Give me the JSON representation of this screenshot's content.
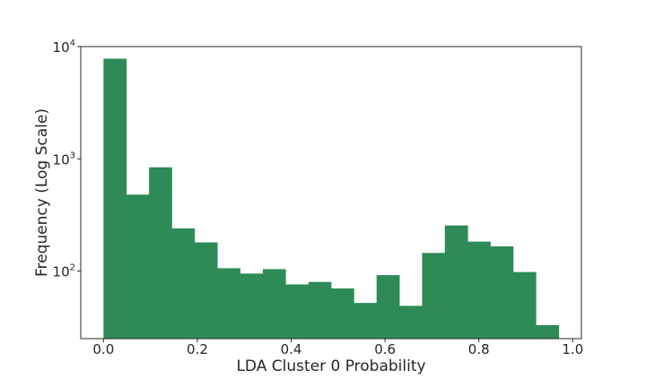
{
  "chart_data": {
    "type": "bar",
    "subtype": "histogram",
    "xlabel": "LDA Cluster 0 Probability",
    "ylabel": "Frequency (Log Scale)",
    "yscale": "log",
    "xlim": [
      -0.0485,
      1.0185
    ],
    "ylim": [
      25,
      10000
    ],
    "bar_color": "#2e8b57",
    "grid": false,
    "bin_width": 0.0485,
    "bins": [
      {
        "x0": 0.0,
        "count": 7800
      },
      {
        "x0": 0.0485,
        "count": 480
      },
      {
        "x0": 0.097,
        "count": 840
      },
      {
        "x0": 0.1455,
        "count": 240
      },
      {
        "x0": 0.194,
        "count": 180
      },
      {
        "x0": 0.2425,
        "count": 106
      },
      {
        "x0": 0.291,
        "count": 95
      },
      {
        "x0": 0.3395,
        "count": 104
      },
      {
        "x0": 0.388,
        "count": 76
      },
      {
        "x0": 0.4365,
        "count": 80
      },
      {
        "x0": 0.485,
        "count": 70
      },
      {
        "x0": 0.5335,
        "count": 52
      },
      {
        "x0": 0.582,
        "count": 92
      },
      {
        "x0": 0.6305,
        "count": 49
      },
      {
        "x0": 0.679,
        "count": 145
      },
      {
        "x0": 0.7275,
        "count": 255
      },
      {
        "x0": 0.776,
        "count": 183
      },
      {
        "x0": 0.8245,
        "count": 166
      },
      {
        "x0": 0.873,
        "count": 98
      },
      {
        "x0": 0.9215,
        "count": 33
      }
    ],
    "xticks": [
      {
        "value": 0.0,
        "label": "0.0"
      },
      {
        "value": 0.2,
        "label": "0.2"
      },
      {
        "value": 0.4,
        "label": "0.4"
      },
      {
        "value": 0.6,
        "label": "0.6"
      },
      {
        "value": 0.8,
        "label": "0.8"
      },
      {
        "value": 1.0,
        "label": "1.0"
      }
    ],
    "yticks": [
      {
        "value": 100,
        "base": "10",
        "exp": "2"
      },
      {
        "value": 1000,
        "base": "10",
        "exp": "3"
      },
      {
        "value": 10000,
        "base": "10",
        "exp": "4"
      }
    ]
  }
}
